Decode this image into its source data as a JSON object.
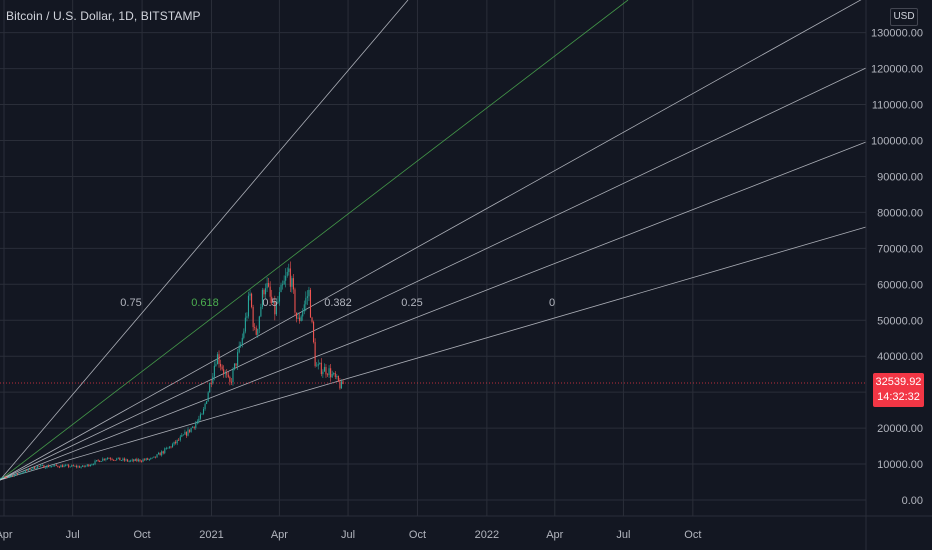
{
  "header": {
    "title": "Bitcoin / U.S. Dollar, 1D, BITSTAMP",
    "currency": "USD"
  },
  "price_tag": {
    "price": "32539.92",
    "countdown": "14:32:32"
  },
  "colors": {
    "background": "#131722",
    "grid": "#2a2e39",
    "candle_up": "#26a69a",
    "candle_down": "#ef5350",
    "fan_line": "#c5c8d0",
    "fan_highlight": "#4caf50",
    "price_line": "#f23645"
  },
  "chart_data": {
    "type": "candlestick",
    "y_axis": {
      "ticks": [
        0,
        10000,
        20000,
        30000,
        40000,
        50000,
        60000,
        70000,
        80000,
        90000,
        100000,
        110000,
        120000,
        130000
      ],
      "tick_labels": [
        "0.00",
        "10000.00",
        "20000.00",
        "30000.00",
        "40000.00",
        "50000.00",
        "60000.00",
        "70000.00",
        "80000.00",
        "90000.00",
        "100000.00",
        "110000.00",
        "120000.00",
        "130000.00"
      ]
    },
    "x_axis": {
      "tick_labels": [
        "Apr",
        "Jul",
        "Oct",
        "2021",
        "Apr",
        "Jul",
        "Oct",
        "2022",
        "Apr",
        "Jul",
        "Oct"
      ]
    },
    "current_price": 32539.92,
    "close_path": [
      [
        "2020-03-15",
        5400
      ],
      [
        "2020-04-15",
        6900
      ],
      [
        "2020-05-15",
        9300
      ],
      [
        "2020-06-15",
        9500
      ],
      [
        "2020-07-15",
        9200
      ],
      [
        "2020-08-15",
        11800
      ],
      [
        "2020-09-15",
        10800
      ],
      [
        "2020-10-15",
        11400
      ],
      [
        "2020-11-15",
        16000
      ],
      [
        "2020-12-01",
        19000
      ],
      [
        "2020-12-20",
        23500
      ],
      [
        "2021-01-08",
        40500
      ],
      [
        "2021-01-25",
        32000
      ],
      [
        "2021-02-10",
        44000
      ],
      [
        "2021-02-21",
        57000
      ],
      [
        "2021-02-28",
        45000
      ],
      [
        "2021-03-13",
        61000
      ],
      [
        "2021-03-25",
        52000
      ],
      [
        "2021-04-14",
        64000
      ],
      [
        "2021-04-25",
        49000
      ],
      [
        "2021-05-10",
        58000
      ],
      [
        "2021-05-19",
        37000
      ],
      [
        "2021-06-05",
        36000
      ],
      [
        "2021-06-22",
        31500
      ],
      [
        "2021-06-25",
        32540
      ]
    ],
    "fan_levels": [
      {
        "label": "0.75",
        "highlight": false
      },
      {
        "label": "0.618",
        "highlight": true
      },
      {
        "label": "0.5",
        "highlight": false
      },
      {
        "label": "0.382",
        "highlight": false
      },
      {
        "label": "0.25",
        "highlight": false
      },
      {
        "label": "0",
        "highlight": false
      }
    ]
  }
}
